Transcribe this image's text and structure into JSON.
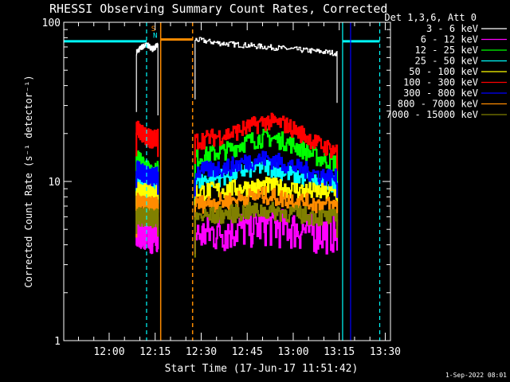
{
  "chart_data": {
    "type": "line",
    "title": "RHESSI Observing Summary Count Rates, Corrected",
    "ylabel": "Corrected Count Rate (s⁻¹ detector⁻¹)",
    "xlabel": "Start Time (17-Jun-17 11:51:42)",
    "footer": "1-Sep-2022 08:01",
    "yscale": "log",
    "ylim": [
      1,
      100
    ],
    "xlim_minutes": [
      -6.5,
      100
    ],
    "y_ticks": [
      {
        "value": 1,
        "label": "1"
      },
      {
        "value": 10,
        "label": "10"
      },
      {
        "value": 100,
        "label": "100"
      }
    ],
    "x_ticks": [
      {
        "minutes": 8.3,
        "label": "12:00"
      },
      {
        "minutes": 23.3,
        "label": "12:15"
      },
      {
        "minutes": 38.3,
        "label": "12:30"
      },
      {
        "minutes": 53.3,
        "label": "12:45"
      },
      {
        "minutes": 68.3,
        "label": "13:00"
      },
      {
        "minutes": 83.3,
        "label": "13:15"
      },
      {
        "minutes": 98.3,
        "label": "13:30"
      }
    ],
    "legend": {
      "header": "Det 1,3,6, Att 0",
      "placement": "right"
    },
    "series": [
      {
        "name": "3 - 6 keV",
        "color": "#ffffff",
        "segments": [
          {
            "t": [
              17.2,
              24.2
            ],
            "y": [
              65,
              70,
              72,
              68,
              72
            ]
          },
          {
            "t": [
              36.3,
              82.6
            ],
            "y": [
              78,
              74,
              72,
              70,
              68,
              66,
              64
            ]
          }
        ]
      },
      {
        "name": "6 - 12 keV",
        "color": "#ff00ff",
        "segments": [
          {
            "t": [
              17.2,
              24.2
            ],
            "y": [
              5.5,
              5.0,
              5.2,
              4.8,
              5.0
            ]
          },
          {
            "t": [
              36.3,
              82.6
            ],
            "y": [
              4.6,
              4.8,
              5.0,
              5.2,
              5.4,
              5.2,
              5.0,
              4.8,
              4.9
            ]
          }
        ]
      },
      {
        "name": "12 - 25 keV",
        "color": "#00ff00",
        "segments": [
          {
            "t": [
              17.2,
              24.2
            ],
            "y": [
              14,
              13,
              12,
              11,
              12
            ]
          },
          {
            "t": [
              36.3,
              82.6
            ],
            "y": [
              14,
              15,
              16,
              18,
              19,
              18,
              16,
              14,
              13
            ]
          }
        ]
      },
      {
        "name": "25 - 50 keV",
        "color": "#00ffff",
        "segments": [
          {
            "t": [
              17.2,
              24.2
            ],
            "y": [
              10,
              9.5,
              9.8,
              9.5,
              9.7
            ]
          },
          {
            "t": [
              36.3,
              82.6
            ],
            "y": [
              10,
              10.5,
              11,
              12,
              12.5,
              11.5,
              10.5,
              10,
              9.8
            ]
          }
        ]
      },
      {
        "name": "50 - 100 keV",
        "color": "#ffff00",
        "segments": [
          {
            "t": [
              17.2,
              24.2
            ],
            "y": [
              8.8,
              8.5,
              8.6,
              8.4,
              8.5
            ]
          },
          {
            "t": [
              36.3,
              82.6
            ],
            "y": [
              8.6,
              8.8,
              9.0,
              9.2,
              9.4,
              9.1,
              8.8,
              8.6,
              8.5
            ]
          }
        ]
      },
      {
        "name": "100 - 300 keV",
        "color": "#ff0000",
        "segments": [
          {
            "t": [
              17.2,
              24.2
            ],
            "y": [
              22,
              20,
              19,
              18.5,
              19
            ]
          },
          {
            "t": [
              36.3,
              82.6
            ],
            "y": [
              18,
              19,
              20,
              22,
              24,
              23,
              20,
              17,
              15.5
            ]
          }
        ]
      },
      {
        "name": "300 - 800 keV",
        "color": "#0000ff",
        "segments": [
          {
            "t": [
              17.2,
              24.2
            ],
            "y": [
              12,
              11.5,
              11,
              10.8,
              11
            ]
          },
          {
            "t": [
              36.3,
              82.6
            ],
            "y": [
              11.5,
              12,
              12.5,
              13.5,
              14,
              13,
              12,
              11,
              10.5
            ]
          }
        ]
      },
      {
        "name": "800 - 7000 keV",
        "color": "#ff8c00",
        "segments": [
          {
            "t": [
              17.2,
              24.2
            ],
            "y": [
              7.5,
              7.2,
              7.0,
              7.1,
              7.0
            ]
          },
          {
            "t": [
              36.3,
              82.6
            ],
            "y": [
              7.2,
              7.4,
              7.6,
              8.0,
              8.2,
              7.8,
              7.5,
              7.2,
              7.0
            ]
          }
        ]
      },
      {
        "name": "7000 - 15000 keV",
        "color": "#808000",
        "segments": [
          {
            "t": [
              17.2,
              24.2
            ],
            "y": [
              6.2,
              6.0,
              6.1,
              5.9,
              6.0
            ]
          },
          {
            "t": [
              36.3,
              82.6
            ],
            "y": [
              6.0,
              6.1,
              6.3,
              6.5,
              6.6,
              6.4,
              6.2,
              6.0,
              5.9
            ]
          }
        ]
      }
    ],
    "markers": [
      {
        "kind": "saa",
        "color": "#00ffff",
        "value": 76,
        "t": [
          -6.5,
          20.5
        ]
      },
      {
        "kind": "saa",
        "color": "#00ffff",
        "value": 76,
        "t": [
          84.4,
          96.5
        ]
      },
      {
        "kind": "attenuator",
        "color": "#ff8c00",
        "value": 78,
        "t": [
          25.1,
          35.5
        ]
      },
      {
        "kind": "vline",
        "color": "#00ffff",
        "style": "solid",
        "t": 84.4
      },
      {
        "kind": "vline",
        "color": "#00ffff",
        "style": "dashed",
        "t": 20.5
      },
      {
        "kind": "vline",
        "color": "#00ffff",
        "style": "dashed",
        "t": 96.5
      },
      {
        "kind": "vline",
        "color": "#ff8c00",
        "style": "solid",
        "t": 25.1
      },
      {
        "kind": "vline",
        "color": "#ff8c00",
        "style": "dashed",
        "t": 35.5
      },
      {
        "kind": "vline",
        "color": "#0000ff",
        "style": "solid",
        "t": 87.0
      }
    ],
    "flag_labels": [
      {
        "text": "S",
        "color": "#ff8c00",
        "t": 22.0,
        "y": 88
      },
      {
        "text": "N",
        "color": "#00ffff",
        "t": 22.6,
        "y": 80
      }
    ]
  }
}
